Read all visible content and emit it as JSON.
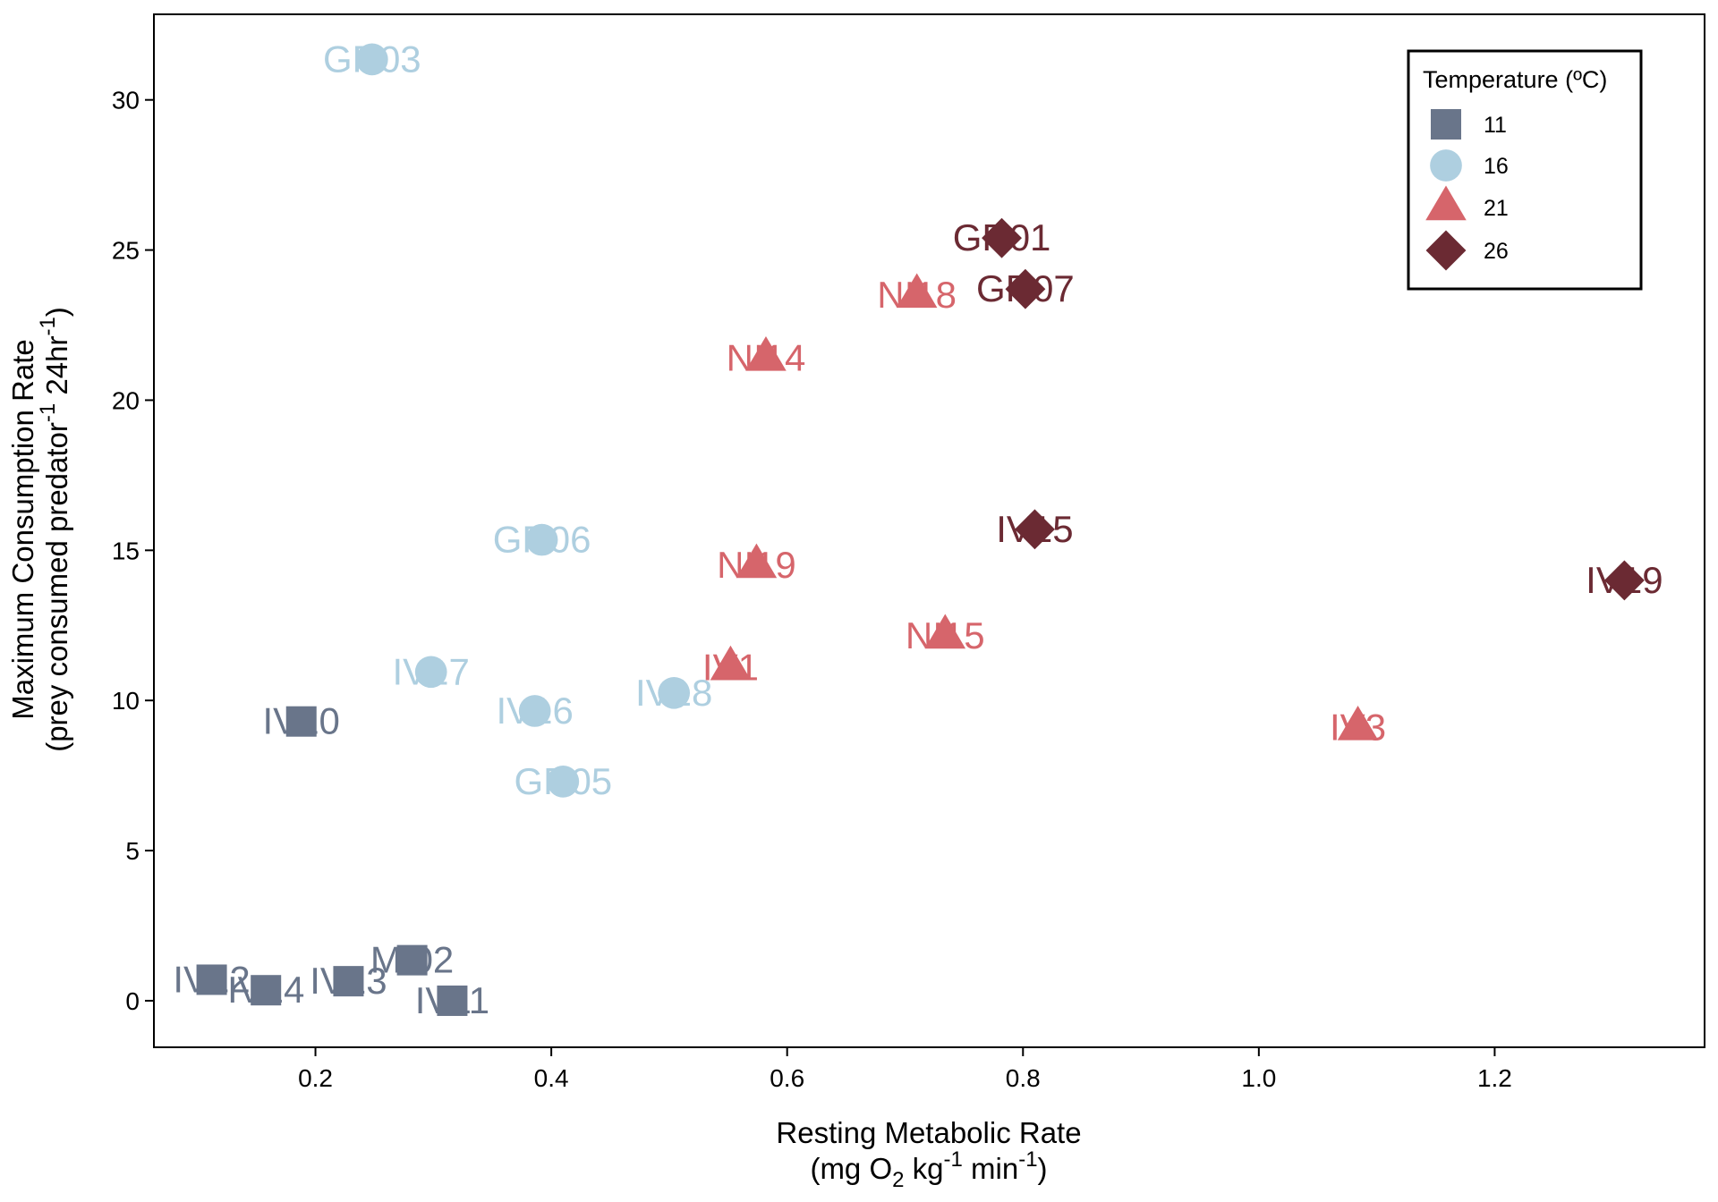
{
  "colors": {
    "t11": "#69758a",
    "t16": "#aecfe0",
    "t21": "#d6656b",
    "t26": "#6b2a33",
    "axis": "#000000"
  },
  "chart_data": {
    "type": "scatter",
    "xlabel_line1": "Resting Metabolic Rate",
    "xlabel_line2": {
      "pre": "(mg O",
      "sub": "2",
      "mid": " kg",
      "sup": "-1",
      "post": " min",
      "sup2": "-1",
      "end": ")"
    },
    "ylabel_line1": "Maximum Consumption Rate",
    "ylabel_line2": {
      "pre": "(prey consumed predator",
      "sup": "-1",
      "mid": " 24hr",
      "sup2": "-1",
      "end": ")"
    },
    "xlim": [
      0.063,
      1.378
    ],
    "ylim": [
      -1.55,
      32.85
    ],
    "xticks": [
      0.2,
      0.4,
      0.6,
      0.8,
      1.0,
      1.2
    ],
    "xtick_labels": [
      "0.2",
      "0.4",
      "0.6",
      "0.8",
      "1.0",
      "1.2"
    ],
    "yticks": [
      0,
      5,
      10,
      15,
      20,
      25,
      30
    ],
    "ytick_labels": [
      "0",
      "5",
      "10",
      "15",
      "20",
      "25",
      "30"
    ],
    "grid": false,
    "legend": {
      "title": "Temperature (ºC)",
      "placement": "top-right",
      "entries": [
        {
          "label": "11",
          "shape": "square",
          "color_key": "t11"
        },
        {
          "label": "16",
          "shape": "circle",
          "color_key": "t16"
        },
        {
          "label": "21",
          "shape": "triangle",
          "color_key": "t21"
        },
        {
          "label": "26",
          "shape": "diamond",
          "color_key": "t26"
        }
      ]
    },
    "series": [
      {
        "name": "11",
        "shape": "square",
        "color_key": "t11",
        "points": [
          {
            "x": 0.188,
            "y": 9.3,
            "label": "IV10"
          },
          {
            "x": 0.112,
            "y": 0.7,
            "label": "IV12"
          },
          {
            "x": 0.158,
            "y": 0.35,
            "label": "IV14"
          },
          {
            "x": 0.228,
            "y": 0.65,
            "label": "IV13"
          },
          {
            "x": 0.282,
            "y": 1.35,
            "label": "MI02"
          },
          {
            "x": 0.316,
            "y": 0.0,
            "label": "IV11"
          }
        ]
      },
      {
        "name": "16",
        "shape": "circle",
        "color_key": "t16",
        "points": [
          {
            "x": 0.248,
            "y": 31.35,
            "label": "GR03"
          },
          {
            "x": 0.392,
            "y": 15.35,
            "label": "GR06"
          },
          {
            "x": 0.298,
            "y": 10.95,
            "label": "IV17"
          },
          {
            "x": 0.386,
            "y": 9.65,
            "label": "IV16"
          },
          {
            "x": 0.504,
            "y": 10.25,
            "label": "IV18"
          },
          {
            "x": 0.41,
            "y": 7.3,
            "label": "GR05"
          }
        ]
      },
      {
        "name": "21",
        "shape": "triangle",
        "color_key": "t21",
        "points": [
          {
            "x": 0.71,
            "y": 23.5,
            "label": "NI18"
          },
          {
            "x": 0.582,
            "y": 21.4,
            "label": "NI14"
          },
          {
            "x": 0.574,
            "y": 14.5,
            "label": "NI19"
          },
          {
            "x": 0.552,
            "y": 11.1,
            "label": "IV1"
          },
          {
            "x": 0.734,
            "y": 12.15,
            "label": "NI15"
          },
          {
            "x": 1.084,
            "y": 9.1,
            "label": "IV3"
          }
        ]
      },
      {
        "name": "26",
        "shape": "diamond",
        "color_key": "t26",
        "points": [
          {
            "x": 0.782,
            "y": 25.4,
            "label": "GR01"
          },
          {
            "x": 0.802,
            "y": 23.7,
            "label": "GR07"
          },
          {
            "x": 0.81,
            "y": 15.7,
            "label": "IV15"
          },
          {
            "x": 1.31,
            "y": 14.0,
            "label": "IV19"
          }
        ]
      }
    ]
  }
}
